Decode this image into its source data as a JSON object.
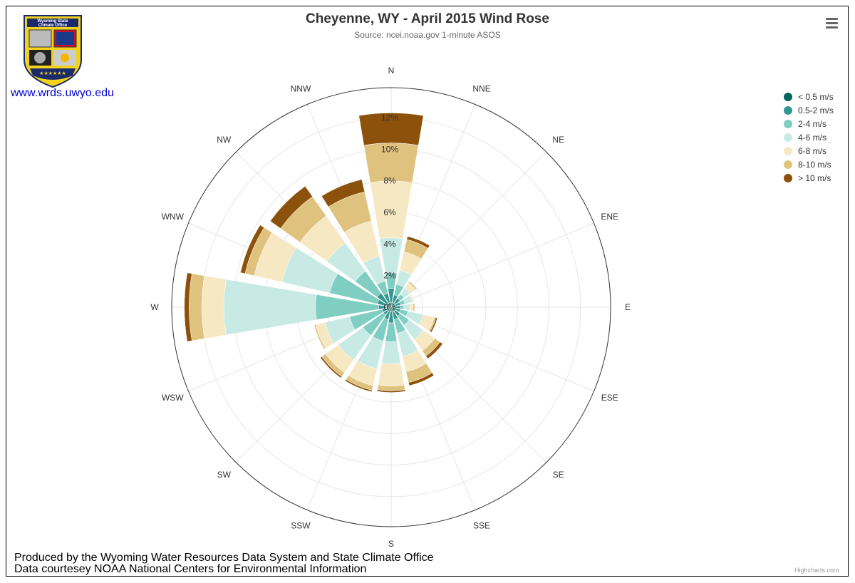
{
  "header": {
    "title": "Cheyenne, WY - April 2015 Wind Rose",
    "subtitle": "Source: ncei.noaa.gov 1-minute ASOS"
  },
  "logo": {
    "text_line1": "Wyoming State",
    "text_line2": "Climate Office",
    "link": "www.wrds.uwyo.edu"
  },
  "footer": {
    "line1": "Produced by the Wyoming Water Resources Data System and State Climate Office",
    "line2": "Data courtesey NOAA National Centers for Environmental Information"
  },
  "credits": "Highcharts.com",
  "menu_icon": "hamburger-menu-icon",
  "chart_data": {
    "type": "windrose",
    "title": "Cheyenne, WY - April 2015 Wind Rose",
    "subtitle": "Source: ncei.noaa.gov 1-minute ASOS",
    "directions": [
      "N",
      "NNE",
      "NE",
      "ENE",
      "E",
      "ESE",
      "SE",
      "SSE",
      "S",
      "SSW",
      "SW",
      "WSW",
      "W",
      "WNW",
      "NW",
      "NNW"
    ],
    "radial_max": 13.9,
    "radial_ticks": [
      0,
      2,
      4,
      6,
      8,
      10,
      12
    ],
    "radial_tick_labels": [
      "0%",
      "2%",
      "4%",
      "6%",
      "8%",
      "10%",
      "12%"
    ],
    "legend_position": "top-right",
    "series": [
      {
        "name": "< 0.5 m/s",
        "color": "#01665e",
        "values": [
          0.3,
          0.3,
          0.3,
          0.3,
          0.3,
          0.3,
          0.3,
          0.3,
          0.3,
          0.3,
          0.3,
          0.3,
          0.3,
          0.3,
          0.3,
          0.3
        ]
      },
      {
        "name": "0.5-2 m/s",
        "color": "#35978f",
        "values": [
          0.9,
          0.5,
          0.4,
          0.3,
          0.3,
          0.3,
          0.4,
          0.5,
          0.7,
          0.5,
          0.3,
          0.3,
          0.5,
          0.6,
          0.8,
          0.6
        ]
      },
      {
        "name": "2-4 m/s",
        "color": "#80cdc1",
        "values": [
          1.0,
          0.7,
          0.3,
          0.3,
          0.2,
          0.5,
          0.7,
          0.9,
          1.2,
          1.4,
          1.6,
          2.1,
          4.0,
          3.1,
          1.7,
          0.8
        ]
      },
      {
        "name": "4-6 m/s",
        "color": "#c7eae5",
        "values": [
          2.2,
          0.9,
          0.5,
          0.5,
          0.4,
          1.0,
          1.1,
          1.5,
          1.4,
          1.8,
          1.9,
          1.6,
          5.8,
          3.1,
          2.2,
          1.6
        ]
      },
      {
        "name": "6-8 m/s",
        "color": "#f6e8c3",
        "values": [
          3.6,
          1.2,
          0.4,
          0.1,
          0.2,
          0.7,
          0.9,
          1.0,
          1.4,
          1.1,
          1.0,
          0.6,
          1.4,
          1.8,
          2.1,
          2.3
        ]
      },
      {
        "name": "8-10 m/s",
        "color": "#dfc27d",
        "values": [
          2.4,
          0.8,
          0.1,
          0.0,
          0.1,
          0.1,
          0.4,
          0.7,
          0.3,
          0.3,
          0.3,
          0.1,
          0.8,
          0.6,
          1.5,
          1.9
        ]
      },
      {
        "name": "> 10 m/s",
        "color": "#8c510a",
        "values": [
          1.9,
          0.2,
          0.0,
          0.0,
          0.0,
          0.1,
          0.2,
          0.2,
          0.1,
          0.1,
          0.1,
          0.0,
          0.3,
          0.3,
          0.8,
          0.8
        ]
      }
    ]
  }
}
